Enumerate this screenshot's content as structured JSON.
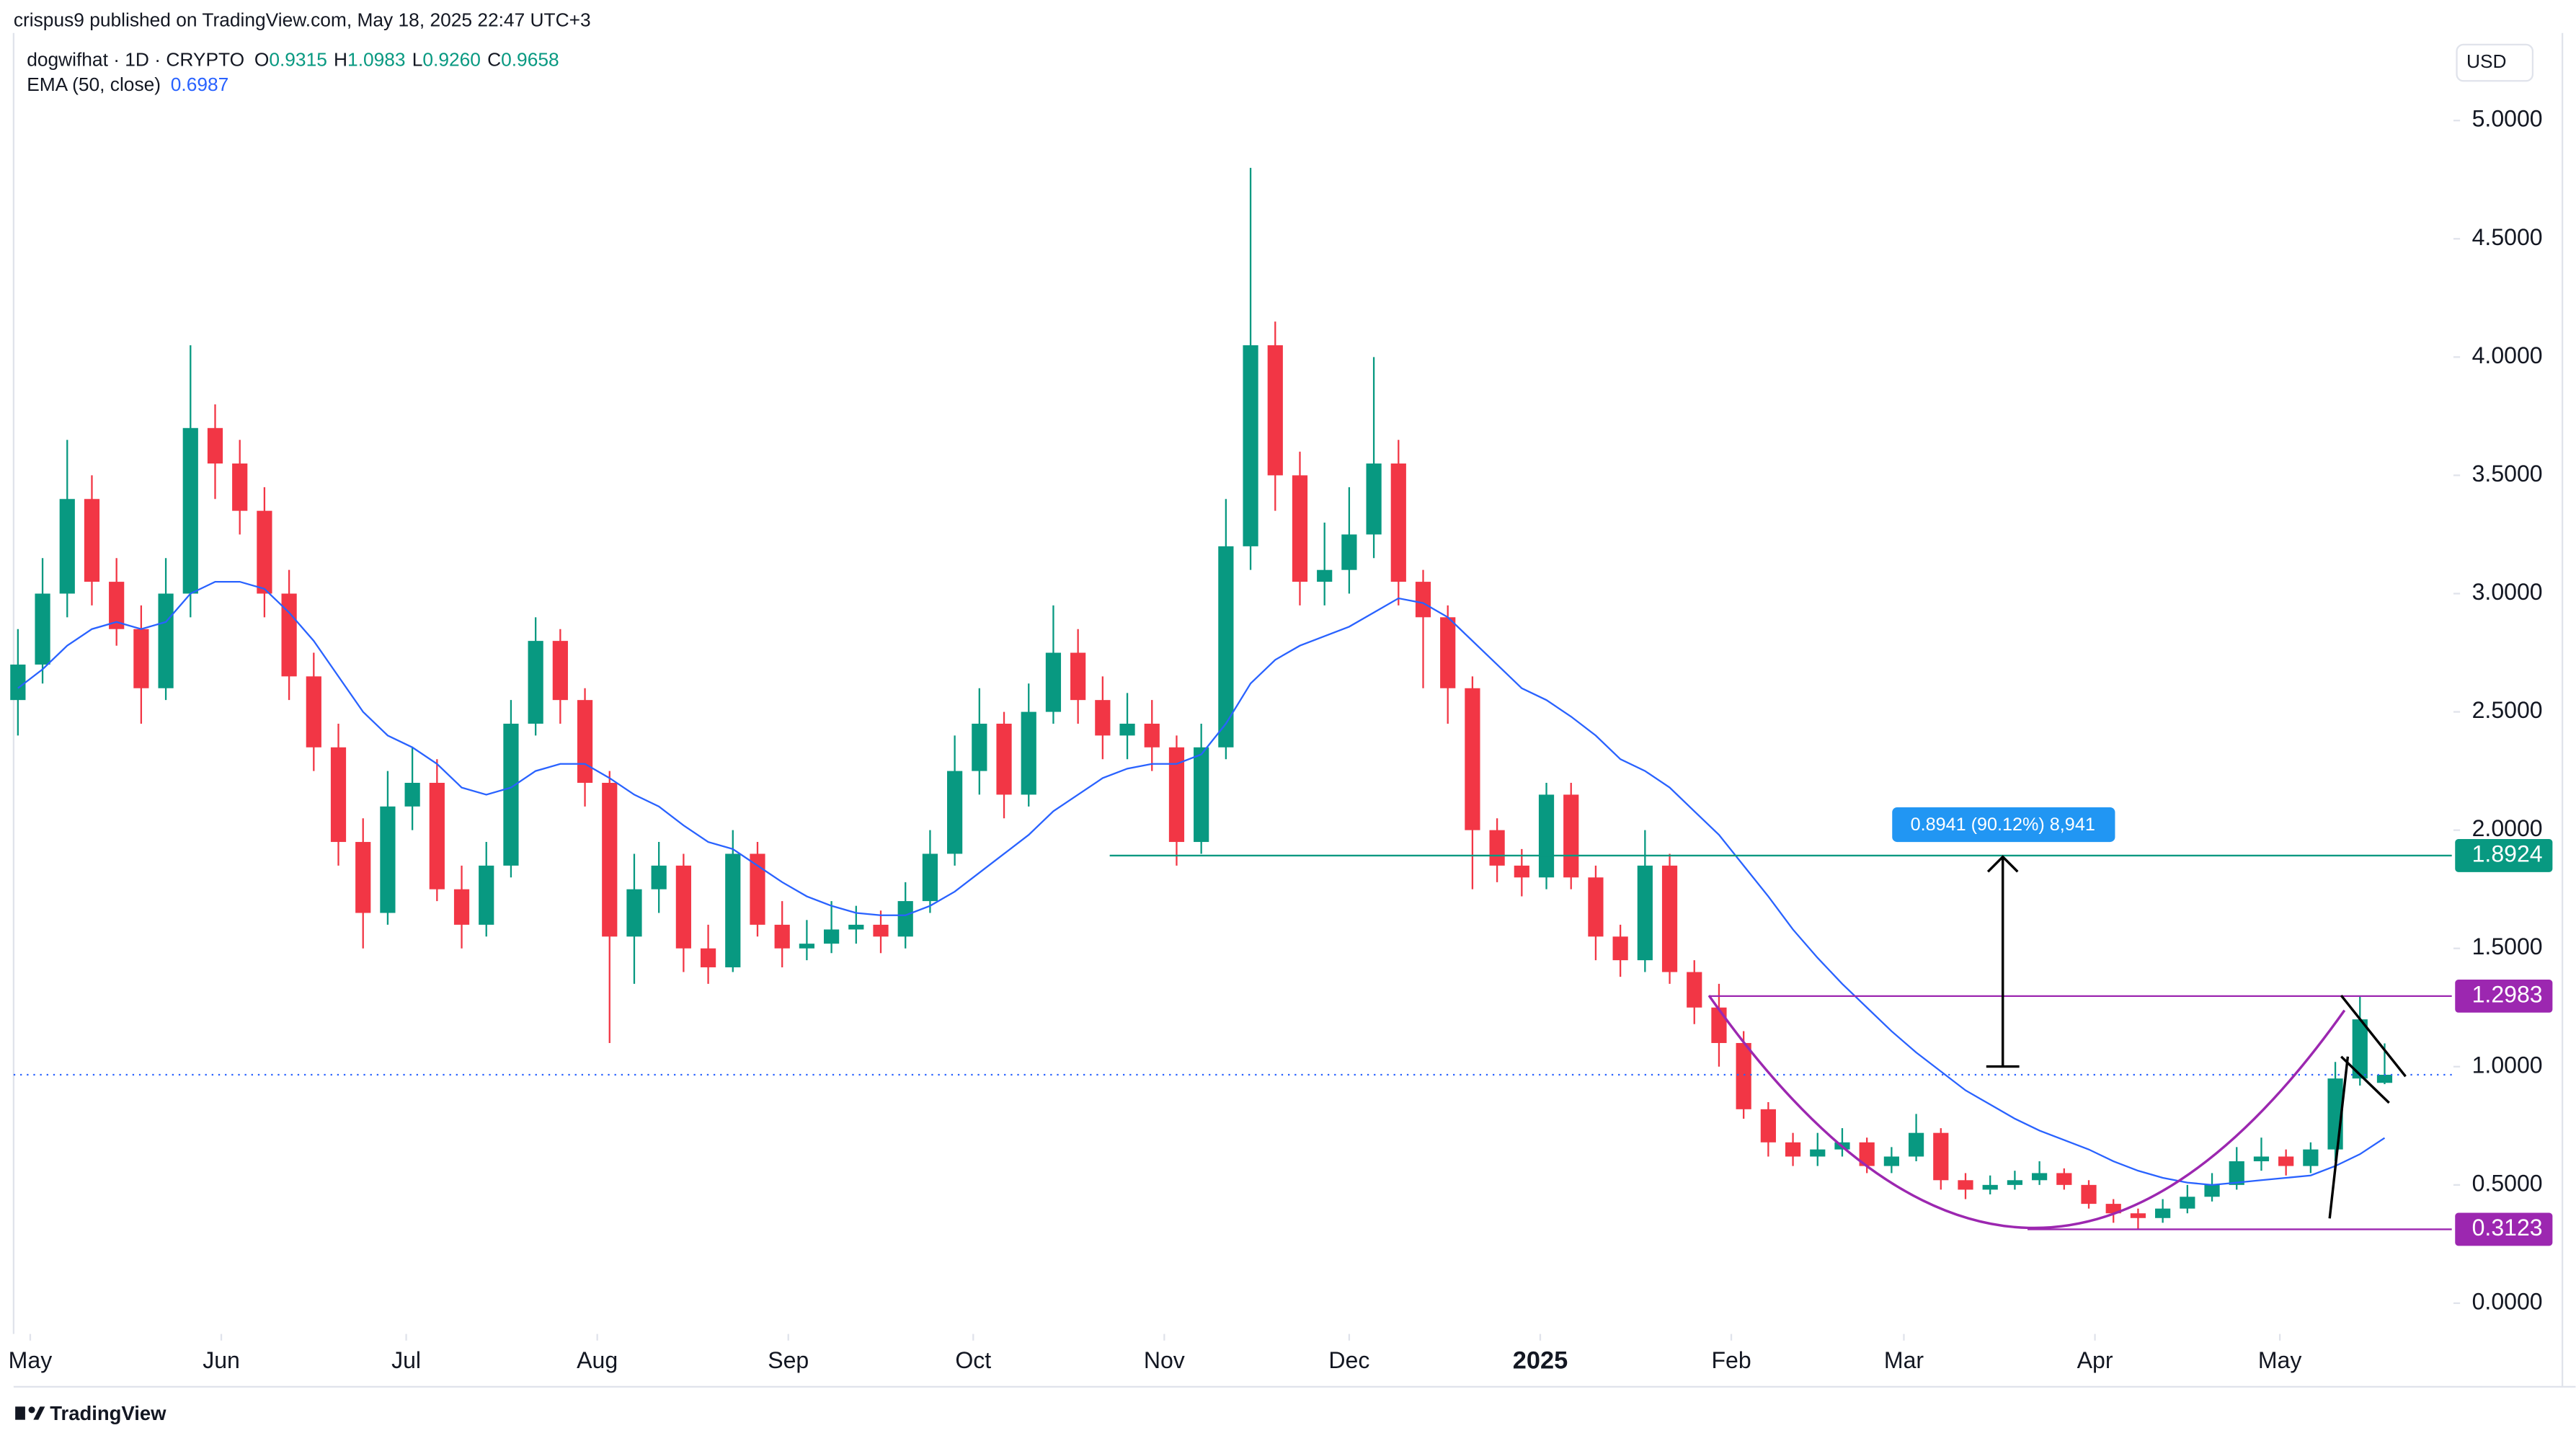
{
  "header": {
    "author_line": "crispus9 published on TradingView.com, May 18, 2025 22:47 UTC+3",
    "symbol": "dogwifhat · 1D · CRYPTO",
    "ohlc": [
      {
        "label": "O",
        "value": "0.9315"
      },
      {
        "label": "H",
        "value": "1.0983"
      },
      {
        "label": "L",
        "value": "0.9260"
      },
      {
        "label": "C",
        "value": "0.9658"
      }
    ],
    "ema_label": "EMA (50, close)",
    "ema_value": "0.6987",
    "currency": "USD",
    "footer": "TradingView"
  },
  "chart_data": {
    "type": "candlestick",
    "up_color": "#089981",
    "down_color": "#f23645",
    "x": [
      -2,
      2,
      6,
      10,
      14,
      18,
      22,
      26,
      30,
      34,
      38,
      42,
      46,
      50,
      54,
      58,
      62,
      66,
      70,
      74,
      78,
      82,
      86,
      90,
      94,
      98,
      102,
      106,
      110,
      114,
      118,
      122,
      126,
      130,
      134,
      138,
      142,
      146,
      150,
      154,
      158,
      162,
      166,
      170,
      174,
      178,
      182,
      186,
      190,
      194,
      198,
      202,
      206,
      210,
      214,
      218,
      222,
      226,
      230,
      234,
      238,
      242,
      246,
      250,
      254,
      258,
      262,
      266,
      270,
      274,
      278,
      282,
      286,
      290,
      294,
      298,
      302,
      306,
      310,
      314,
      318,
      322,
      326,
      330,
      334,
      338,
      342,
      346,
      350,
      354,
      358,
      362,
      366,
      370,
      374,
      378,
      382
    ],
    "open": [
      2.55,
      2.7,
      3.0,
      3.4,
      3.05,
      2.85,
      2.6,
      3.0,
      3.7,
      3.55,
      3.35,
      3.0,
      2.65,
      2.35,
      1.95,
      1.65,
      2.1,
      2.2,
      1.75,
      1.6,
      1.85,
      2.45,
      2.8,
      2.55,
      2.2,
      1.55,
      1.75,
      1.85,
      1.5,
      1.42,
      1.9,
      1.6,
      1.5,
      1.52,
      1.58,
      1.6,
      1.55,
      1.7,
      1.9,
      2.25,
      2.45,
      2.15,
      2.5,
      2.75,
      2.55,
      2.4,
      2.45,
      2.35,
      1.95,
      2.35,
      3.2,
      4.05,
      3.5,
      3.05,
      3.1,
      3.25,
      3.55,
      3.05,
      2.9,
      2.6,
      2.0,
      1.85,
      1.8,
      2.15,
      1.8,
      1.55,
      1.45,
      1.85,
      1.4,
      1.25,
      1.1,
      0.82,
      0.68,
      0.62,
      0.65,
      0.68,
      0.58,
      0.62,
      0.72,
      0.52,
      0.48,
      0.5,
      0.52,
      0.55,
      0.5,
      0.42,
      0.38,
      0.36,
      0.4,
      0.45,
      0.5,
      0.6,
      0.62,
      0.58,
      0.65,
      0.95,
      0.9315
    ],
    "high": [
      2.85,
      3.15,
      3.65,
      3.5,
      3.15,
      2.95,
      3.15,
      4.05,
      3.8,
      3.65,
      3.45,
      3.1,
      2.75,
      2.45,
      2.05,
      2.25,
      2.35,
      2.3,
      1.85,
      1.95,
      2.55,
      2.9,
      2.85,
      2.6,
      2.25,
      1.9,
      1.95,
      1.9,
      1.6,
      2.0,
      1.95,
      1.7,
      1.62,
      1.7,
      1.68,
      1.66,
      1.78,
      2.0,
      2.4,
      2.6,
      2.5,
      2.62,
      2.95,
      2.85,
      2.65,
      2.58,
      2.55,
      2.4,
      2.45,
      3.4,
      4.8,
      4.15,
      3.6,
      3.3,
      3.45,
      4.0,
      3.65,
      3.1,
      2.95,
      2.65,
      2.05,
      1.92,
      2.2,
      2.2,
      1.85,
      1.6,
      2.0,
      1.9,
      1.45,
      1.35,
      1.15,
      0.85,
      0.72,
      0.72,
      0.74,
      0.7,
      0.66,
      0.8,
      0.74,
      0.55,
      0.54,
      0.56,
      0.6,
      0.57,
      0.52,
      0.44,
      0.4,
      0.44,
      0.5,
      0.55,
      0.66,
      0.7,
      0.65,
      0.68,
      1.02,
      1.3,
      1.0983
    ],
    "low": [
      2.4,
      2.62,
      2.9,
      2.95,
      2.78,
      2.45,
      2.55,
      2.9,
      3.4,
      3.25,
      2.9,
      2.55,
      2.25,
      1.85,
      1.5,
      1.6,
      2.0,
      1.7,
      1.5,
      1.55,
      1.8,
      2.4,
      2.45,
      2.1,
      1.1,
      1.35,
      1.65,
      1.4,
      1.35,
      1.4,
      1.55,
      1.42,
      1.45,
      1.48,
      1.52,
      1.48,
      1.5,
      1.65,
      1.85,
      2.15,
      2.05,
      2.1,
      2.45,
      2.45,
      2.3,
      2.3,
      2.25,
      1.85,
      1.9,
      2.3,
      3.1,
      3.35,
      2.95,
      2.95,
      3.0,
      3.15,
      2.95,
      2.6,
      2.45,
      1.75,
      1.78,
      1.72,
      1.75,
      1.75,
      1.45,
      1.38,
      1.4,
      1.35,
      1.18,
      1.0,
      0.78,
      0.62,
      0.58,
      0.58,
      0.62,
      0.55,
      0.55,
      0.6,
      0.48,
      0.44,
      0.46,
      0.48,
      0.5,
      0.48,
      0.4,
      0.34,
      0.31,
      0.34,
      0.38,
      0.43,
      0.48,
      0.56,
      0.54,
      0.55,
      0.6,
      0.92,
      0.926
    ],
    "close": [
      2.7,
      3.0,
      3.4,
      3.05,
      2.85,
      2.6,
      3.0,
      3.7,
      3.55,
      3.35,
      3.0,
      2.65,
      2.35,
      1.95,
      1.65,
      2.1,
      2.2,
      1.75,
      1.6,
      1.85,
      2.45,
      2.8,
      2.55,
      2.2,
      1.55,
      1.75,
      1.85,
      1.5,
      1.42,
      1.9,
      1.6,
      1.5,
      1.52,
      1.58,
      1.6,
      1.55,
      1.7,
      1.9,
      2.25,
      2.45,
      2.15,
      2.5,
      2.75,
      2.55,
      2.4,
      2.45,
      2.35,
      1.95,
      2.35,
      3.2,
      4.05,
      3.5,
      3.05,
      3.1,
      3.25,
      3.55,
      3.05,
      2.9,
      2.6,
      2.0,
      1.85,
      1.8,
      2.15,
      1.8,
      1.55,
      1.45,
      1.85,
      1.4,
      1.25,
      1.1,
      0.82,
      0.68,
      0.62,
      0.65,
      0.68,
      0.58,
      0.62,
      0.72,
      0.52,
      0.48,
      0.5,
      0.52,
      0.55,
      0.5,
      0.42,
      0.38,
      0.36,
      0.4,
      0.45,
      0.5,
      0.6,
      0.62,
      0.58,
      0.65,
      0.95,
      1.2,
      0.9658
    ],
    "ema": {
      "color": "#2962ff",
      "values": [
        2.6,
        2.68,
        2.78,
        2.85,
        2.88,
        2.85,
        2.88,
        3.0,
        3.05,
        3.05,
        3.02,
        2.92,
        2.8,
        2.65,
        2.5,
        2.4,
        2.35,
        2.28,
        2.18,
        2.15,
        2.18,
        2.25,
        2.28,
        2.28,
        2.22,
        2.15,
        2.1,
        2.02,
        1.95,
        1.92,
        1.85,
        1.78,
        1.72,
        1.68,
        1.65,
        1.64,
        1.64,
        1.68,
        1.74,
        1.82,
        1.9,
        1.98,
        2.08,
        2.15,
        2.22,
        2.26,
        2.28,
        2.28,
        2.32,
        2.45,
        2.62,
        2.72,
        2.78,
        2.82,
        2.86,
        2.92,
        2.98,
        2.96,
        2.9,
        2.8,
        2.7,
        2.6,
        2.55,
        2.48,
        2.4,
        2.3,
        2.25,
        2.18,
        2.08,
        1.98,
        1.85,
        1.72,
        1.58,
        1.46,
        1.35,
        1.25,
        1.15,
        1.06,
        0.98,
        0.9,
        0.84,
        0.78,
        0.73,
        0.69,
        0.65,
        0.6,
        0.56,
        0.53,
        0.51,
        0.5,
        0.51,
        0.52,
        0.53,
        0.54,
        0.58,
        0.63,
        0.6987
      ]
    },
    "ylim": [
      -0.13,
      5.37
    ],
    "yticks": [
      {
        "value": 0,
        "label": "0.0000"
      },
      {
        "value": 0.5,
        "label": "0.5000"
      },
      {
        "value": 1,
        "label": "1.0000"
      },
      {
        "value": 1.5,
        "label": "1.5000"
      },
      {
        "value": 2,
        "label": "2.0000"
      },
      {
        "value": 2.5,
        "label": "2.5000"
      },
      {
        "value": 3,
        "label": "3.0000"
      },
      {
        "value": 3.5,
        "label": "3.5000"
      },
      {
        "value": 4,
        "label": "4.0000"
      },
      {
        "value": 4.5,
        "label": "4.5000"
      },
      {
        "value": 5,
        "label": "5.0000"
      }
    ],
    "xlim": [
      -2.7,
      392.9
    ],
    "xticks": [
      {
        "value": 0,
        "label": "May"
      },
      {
        "value": 31,
        "label": "Jun"
      },
      {
        "value": 61,
        "label": "Jul"
      },
      {
        "value": 92,
        "label": "Aug"
      },
      {
        "value": 123,
        "label": "Sep"
      },
      {
        "value": 153,
        "label": "Oct"
      },
      {
        "value": 184,
        "label": "Nov"
      },
      {
        "value": 214,
        "label": "Dec"
      },
      {
        "value": 245,
        "label": "2025"
      },
      {
        "value": 276,
        "label": "Feb"
      },
      {
        "value": 304,
        "label": "Mar"
      },
      {
        "value": 335,
        "label": "Apr"
      },
      {
        "value": 365,
        "label": "May"
      }
    ],
    "levels": [
      {
        "value": 1.8924,
        "color": "#089981"
      },
      {
        "value": 1.2983,
        "color": "#9c27b0"
      },
      {
        "value": 0.3123,
        "color": "#9c27b0"
      }
    ],
    "annotation": "0.8941 (90.12%) 8,941"
  }
}
